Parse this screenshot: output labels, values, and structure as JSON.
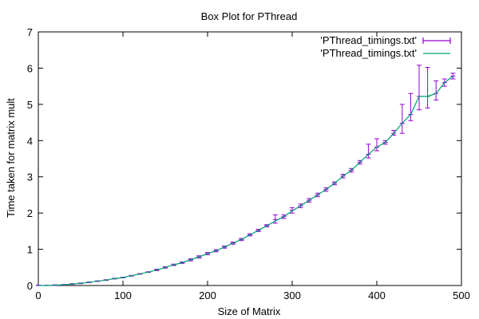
{
  "chart_data": {
    "type": "line",
    "title": "Box Plot for PThread",
    "xlabel": "Size of Matrix",
    "ylabel": "Time taken for matrix mult",
    "xlim": [
      0,
      500
    ],
    "ylim": [
      0,
      7
    ],
    "x_ticks": [
      "0",
      "100",
      "200",
      "300",
      "400",
      "500"
    ],
    "y_ticks": [
      "0",
      "1",
      "2",
      "3",
      "4",
      "5",
      "6",
      "7"
    ],
    "grid": false,
    "legend_position": "top-right",
    "colors": {
      "errorbars": "#9400d3",
      "line": "#009e73"
    },
    "series": [
      {
        "name": "'PThread_timings.txt'",
        "kind": "errorbars",
        "x": [
          0,
          10,
          20,
          30,
          40,
          50,
          60,
          70,
          80,
          90,
          100,
          110,
          120,
          130,
          140,
          150,
          160,
          170,
          180,
          190,
          200,
          210,
          220,
          230,
          240,
          250,
          260,
          270,
          280,
          290,
          300,
          310,
          320,
          330,
          340,
          350,
          360,
          370,
          380,
          390,
          400,
          410,
          420,
          430,
          440,
          450,
          460,
          470,
          480,
          490
        ],
        "y": [
          0,
          0,
          0.01,
          0.02,
          0.04,
          0.06,
          0.09,
          0.12,
          0.15,
          0.19,
          0.22,
          0.27,
          0.32,
          0.37,
          0.43,
          0.5,
          0.57,
          0.63,
          0.71,
          0.79,
          0.88,
          0.96,
          1.06,
          1.17,
          1.27,
          1.4,
          1.52,
          1.65,
          1.82,
          1.9,
          2.08,
          2.2,
          2.35,
          2.5,
          2.65,
          2.82,
          3.02,
          3.18,
          3.4,
          3.62,
          3.82,
          3.95,
          4.2,
          4.48,
          4.72,
          5.22,
          5.22,
          5.3,
          5.6,
          5.78
        ],
        "lo": [
          0,
          0,
          0,
          0.01,
          0.03,
          0.05,
          0.08,
          0.11,
          0.14,
          0.18,
          0.21,
          0.26,
          0.31,
          0.36,
          0.41,
          0.48,
          0.55,
          0.61,
          0.68,
          0.76,
          0.85,
          0.93,
          1.03,
          1.14,
          1.24,
          1.37,
          1.49,
          1.62,
          1.72,
          1.85,
          2.0,
          2.15,
          2.3,
          2.45,
          2.6,
          2.78,
          2.97,
          3.13,
          3.35,
          3.52,
          3.72,
          3.9,
          4.15,
          4.2,
          4.55,
          4.85,
          4.9,
          5.12,
          5.5,
          5.7
        ],
        "hi": [
          0.01,
          0.01,
          0.02,
          0.03,
          0.05,
          0.07,
          0.1,
          0.13,
          0.16,
          0.2,
          0.23,
          0.28,
          0.33,
          0.38,
          0.45,
          0.52,
          0.59,
          0.65,
          0.74,
          0.82,
          0.91,
          0.99,
          1.09,
          1.2,
          1.3,
          1.43,
          1.55,
          1.68,
          1.95,
          1.95,
          2.15,
          2.25,
          2.4,
          2.55,
          2.7,
          2.86,
          3.07,
          3.23,
          3.45,
          3.9,
          4.05,
          4.0,
          4.28,
          5.0,
          5.3,
          6.08,
          6.02,
          5.65,
          5.7,
          5.86
        ]
      },
      {
        "name": "'PThread_timings.txt'",
        "kind": "line",
        "x": [
          0,
          10,
          20,
          30,
          40,
          50,
          60,
          70,
          80,
          90,
          100,
          110,
          120,
          130,
          140,
          150,
          160,
          170,
          180,
          190,
          200,
          210,
          220,
          230,
          240,
          250,
          260,
          270,
          280,
          290,
          300,
          310,
          320,
          330,
          340,
          350,
          360,
          370,
          380,
          390,
          400,
          410,
          420,
          430,
          440,
          450,
          460,
          470,
          480,
          490
        ],
        "y": [
          0,
          0,
          0.01,
          0.02,
          0.04,
          0.06,
          0.09,
          0.12,
          0.15,
          0.19,
          0.22,
          0.27,
          0.32,
          0.37,
          0.43,
          0.5,
          0.57,
          0.63,
          0.71,
          0.79,
          0.88,
          0.96,
          1.06,
          1.17,
          1.27,
          1.4,
          1.52,
          1.65,
          1.78,
          1.9,
          2.06,
          2.2,
          2.35,
          2.5,
          2.65,
          2.82,
          3.02,
          3.18,
          3.4,
          3.62,
          3.82,
          3.95,
          4.2,
          4.48,
          4.72,
          5.22,
          5.22,
          5.3,
          5.6,
          5.78
        ]
      }
    ]
  }
}
